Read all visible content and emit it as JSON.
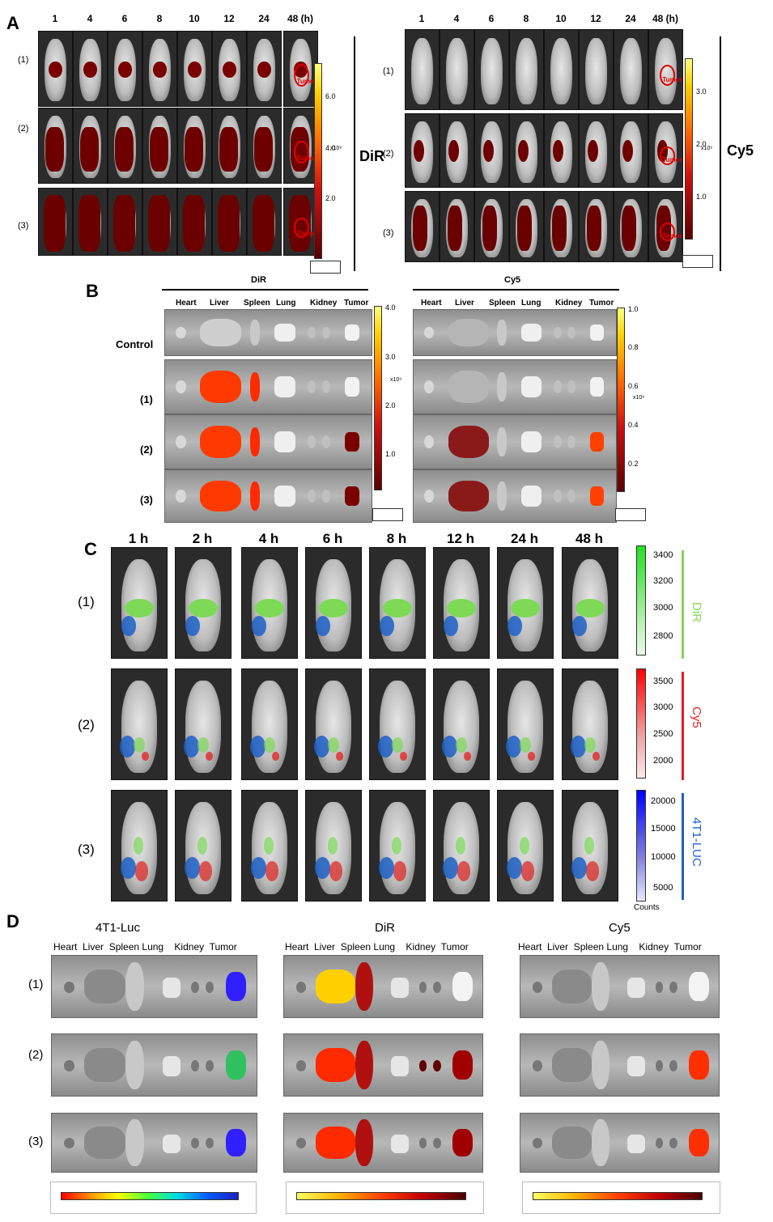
{
  "panels": {
    "A": "A",
    "B": "B",
    "C": "C",
    "D": "D"
  },
  "panelA": {
    "times": [
      "1",
      "4",
      "6",
      "8",
      "10",
      "12",
      "24",
      "48 (h)"
    ],
    "rows": [
      "(1)",
      "(2)",
      "(3)"
    ],
    "tumor_label": "Tumor",
    "dir_label": "DiR",
    "cy5_label": "Cy5",
    "dir_scale": [
      "6.0",
      "4.0",
      "2.0"
    ],
    "dir_scale_exp": "x10⁹",
    "cy5_scale": [
      "3.0",
      "2.0",
      "1.0"
    ],
    "cy5_scale_exp": "x10⁹"
  },
  "panelB": {
    "dir_title": "DiR",
    "cy5_title": "Cy5",
    "organs": [
      "Heart",
      "Liver",
      "Spleen",
      "Lung",
      "Kidney",
      "Tumor"
    ],
    "rows": [
      "Control",
      "(1)",
      "(2)",
      "(3)"
    ],
    "dir_scale": [
      "4.0",
      "3.0",
      "2.0",
      "1.0"
    ],
    "dir_exp": "x10⁹",
    "cy5_scale": [
      "1.0",
      "0.8",
      "0.6",
      "0.4",
      "0.2"
    ],
    "cy5_exp": "x10⁹"
  },
  "panelC": {
    "times": [
      "1 h",
      "2 h",
      "4 h",
      "6 h",
      "8 h",
      "12 h",
      "24 h",
      "48 h"
    ],
    "rows": [
      "(1)",
      "(2)",
      "(3)"
    ],
    "dir_ticks": [
      "3400",
      "3200",
      "3000",
      "2800"
    ],
    "dir_label": "DiR",
    "cy5_ticks": [
      "3500",
      "3000",
      "2500",
      "2000"
    ],
    "cy5_label": "Cy5",
    "luc_ticks": [
      "20000",
      "15000",
      "10000",
      "5000"
    ],
    "luc_label": "4T1-LUC",
    "counts_label": "Counts",
    "colors": {
      "dir": "#7ed957",
      "cy5": "#e02020",
      "luc": "#1e60c8"
    }
  },
  "panelD": {
    "titles": [
      "4T1-Luc",
      "DiR",
      "Cy5"
    ],
    "organs": "Heart  Liver  Spleen Lung    Kidney  Tumor",
    "rows": [
      "(1)",
      "(2)",
      "(3)"
    ]
  }
}
